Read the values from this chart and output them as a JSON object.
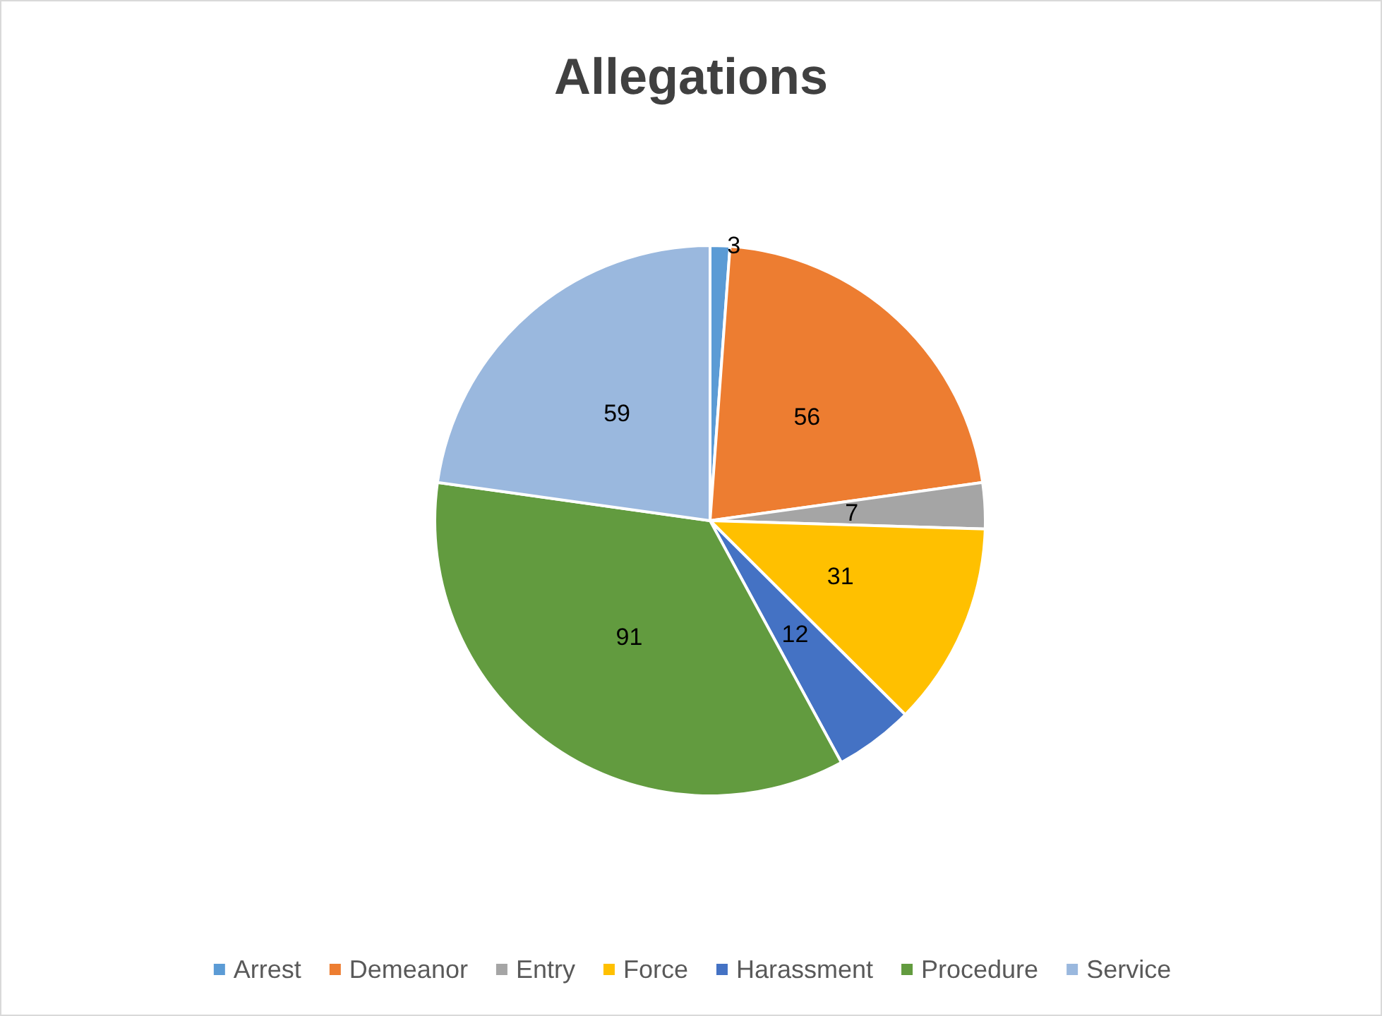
{
  "chart_data": {
    "type": "pie",
    "title": "Allegations",
    "categories": [
      "Arrest",
      "Demeanor",
      "Entry",
      "Force",
      "Harassment",
      "Procedure",
      "Service"
    ],
    "values": [
      3,
      56,
      7,
      31,
      12,
      91,
      59
    ],
    "colors": [
      "#5b9bd5",
      "#ed7d31",
      "#a5a5a5",
      "#ffc000",
      "#4472c4",
      "#629b3f",
      "#9ab8de"
    ],
    "data_labels": true,
    "legend": "bottom"
  }
}
